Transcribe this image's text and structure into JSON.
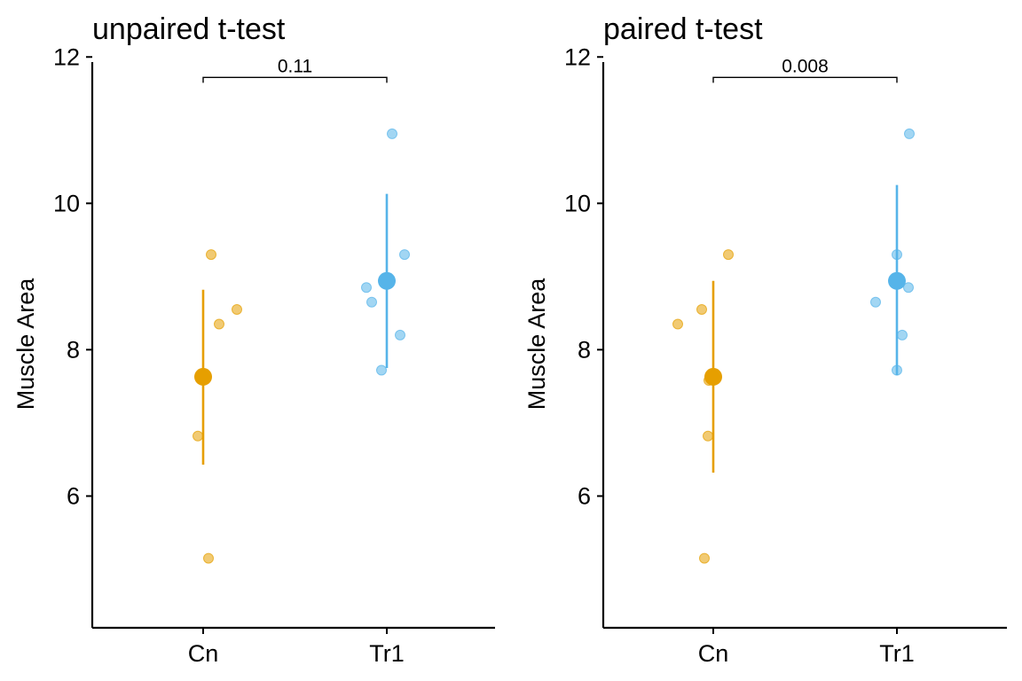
{
  "chart_data": [
    {
      "type": "scatter",
      "title": "unpaired t-test",
      "xlabel": "",
      "ylabel": "Muscle Area",
      "categories": [
        "Cn",
        "Tr1"
      ],
      "ylim": [
        4.2,
        12.1
      ],
      "yticks": [
        6,
        8,
        10,
        12
      ],
      "grid": false,
      "legend": "none",
      "series": [
        {
          "category": "Cn",
          "color": "#E69F00",
          "points": [
            9.3,
            8.55,
            8.35,
            6.82,
            5.15
          ],
          "mean": 7.63,
          "error": [
            6.43,
            8.82
          ]
        },
        {
          "category": "Tr1",
          "color": "#56B4E9",
          "points": [
            10.95,
            9.3,
            8.85,
            8.65,
            8.2,
            7.72
          ],
          "mean": 8.94,
          "error": [
            7.75,
            10.13
          ]
        }
      ],
      "annotation": {
        "label": "0.11",
        "from": "Cn",
        "to": "Tr1",
        "y": 11.72
      }
    },
    {
      "type": "scatter",
      "title": "paired t-test",
      "xlabel": "",
      "ylabel": "Muscle Area",
      "categories": [
        "Cn",
        "Tr1"
      ],
      "ylim": [
        4.2,
        12.1
      ],
      "yticks": [
        6,
        8,
        10,
        12
      ],
      "grid": false,
      "legend": "none",
      "series": [
        {
          "category": "Cn",
          "color": "#E69F00",
          "points": [
            9.3,
            8.55,
            8.35,
            7.58,
            6.82,
            5.15
          ],
          "mean": 7.63,
          "error": [
            6.32,
            8.94
          ]
        },
        {
          "category": "Tr1",
          "color": "#56B4E9",
          "points": [
            10.95,
            9.3,
            8.85,
            8.65,
            8.2,
            7.72
          ],
          "mean": 8.94,
          "error": [
            7.65,
            10.25
          ]
        }
      ],
      "annotation": {
        "label": "0.008",
        "from": "Cn",
        "to": "Tr1",
        "y": 11.72
      }
    }
  ]
}
